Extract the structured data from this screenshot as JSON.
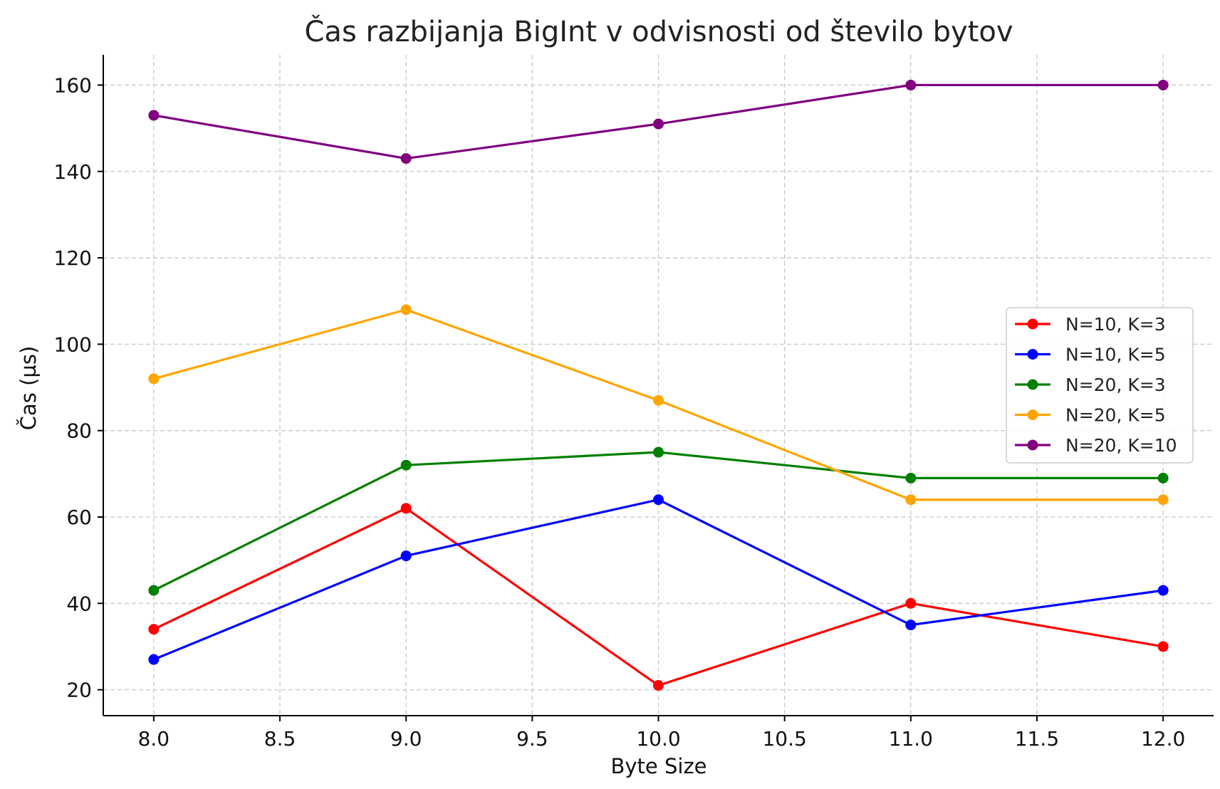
{
  "chart_data": {
    "type": "line",
    "title": "Čas razbijanja BigInt v odvisnosti od število bytov",
    "xlabel": "Byte Size",
    "ylabel": "Čas (µs)",
    "xlim": [
      7.8,
      12.2
    ],
    "ylim": [
      14,
      167
    ],
    "x_ticks": [
      "8.0",
      "8.5",
      "9.0",
      "9.5",
      "10.0",
      "10.5",
      "11.0",
      "11.5",
      "12.0"
    ],
    "y_ticks": [
      "20",
      "40",
      "60",
      "80",
      "100",
      "120",
      "140",
      "160"
    ],
    "grid": true,
    "legend_position": "center-right",
    "x": [
      8,
      9,
      10,
      11,
      12
    ],
    "series": [
      {
        "name": "N=10, K=3",
        "color": "#ff0000",
        "values": [
          34,
          62,
          21,
          40,
          30
        ]
      },
      {
        "name": "N=10, K=5",
        "color": "#0000ff",
        "values": [
          27,
          51,
          64,
          35,
          43
        ]
      },
      {
        "name": "N=20, K=3",
        "color": "#008000",
        "values": [
          43,
          72,
          75,
          69,
          69
        ]
      },
      {
        "name": "N=20, K=5",
        "color": "#ffa500",
        "values": [
          92,
          108,
          87,
          64,
          64
        ]
      },
      {
        "name": "N=20, K=10",
        "color": "#800080",
        "values": [
          153,
          143,
          151,
          160,
          160
        ]
      }
    ]
  }
}
